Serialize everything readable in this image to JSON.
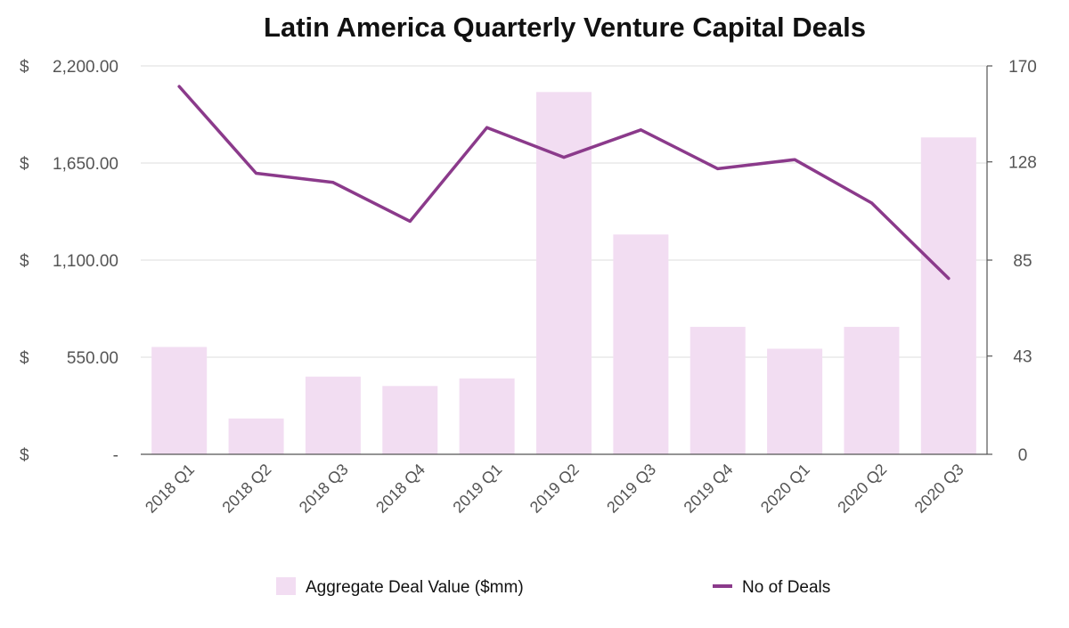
{
  "chart_data": {
    "type": "bar+line",
    "title": "Latin America Quarterly Venture Capital Deals",
    "categories": [
      "2018 Q1",
      "2018 Q2",
      "2018 Q3",
      "2018 Q4",
      "2019 Q1",
      "2019 Q2",
      "2019 Q3",
      "2019 Q4",
      "2020 Q1",
      "2020 Q2",
      "2020 Q3"
    ],
    "series": [
      {
        "name": "Aggregate Deal Value ($mm)",
        "type": "bar",
        "axis": "left",
        "color": "#f2ddf2",
        "values": [
          608,
          203,
          440,
          387,
          430,
          2052,
          1245,
          722,
          598,
          722,
          1795
        ]
      },
      {
        "name": "No of Deals",
        "type": "line",
        "axis": "right",
        "color": "#8b3a8b",
        "values": [
          161,
          123,
          119,
          102,
          143,
          130,
          142,
          125,
          129,
          110,
          77
        ]
      }
    ],
    "y_left": {
      "min": 0,
      "max": 2200,
      "ticks": [
        0,
        550,
        1100,
        1650,
        2200
      ],
      "tick_labels": [
        {
          "cur": "$",
          "num": "-"
        },
        {
          "cur": "$",
          "num": "550.00"
        },
        {
          "cur": "$",
          "num": "1,100.00"
        },
        {
          "cur": "$",
          "num": "1,650.00"
        },
        {
          "cur": "$",
          "num": "2,200.00"
        }
      ]
    },
    "y_right": {
      "min": 0,
      "max": 170,
      "ticks": [
        0,
        43,
        85,
        128,
        170
      ],
      "tick_labels": [
        "0",
        "43",
        "85",
        "128",
        "170"
      ]
    },
    "grid": true,
    "legend_position": "bottom"
  }
}
